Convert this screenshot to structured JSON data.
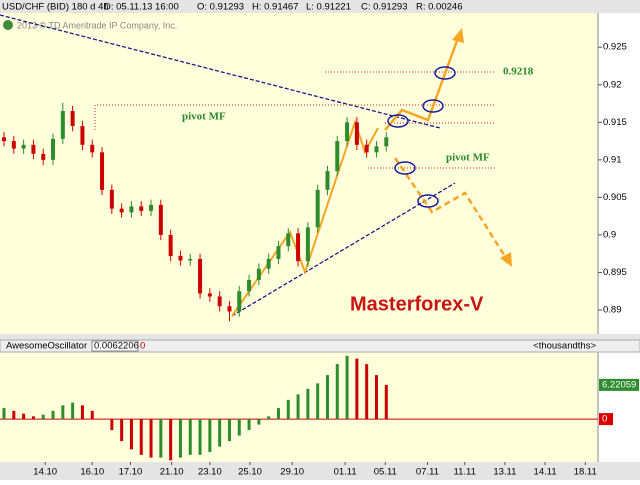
{
  "header": {
    "symbol": "USD/CHF (BID) 180 d 4h",
    "date": "D: 05.11.13 16:00",
    "open": "O: 0.91293",
    "high": "H: 0.91467",
    "low": "L: 0.91221",
    "close": "C: 0.91293",
    "range": "R: 0.00246"
  },
  "chart_data": [
    {
      "type": "candlestick",
      "copyright": "2013 © TD Ameritrade IP Company, Inc.",
      "level_label": "0.9218",
      "pivot_labels": [
        "pivot MF",
        "pivot MF"
      ],
      "watermark": "Masterforex-V",
      "open": [
        0.913,
        0.9125,
        0.9115,
        0.912,
        0.9108,
        0.91,
        0.9128,
        0.9165,
        0.9145,
        0.912,
        0.911,
        0.906,
        0.9035,
        0.903,
        0.9038,
        0.9032,
        0.904,
        0.9,
        0.8972,
        0.8966,
        0.8968,
        0.8922,
        0.8918,
        0.8905,
        0.8898,
        0.8925,
        0.894,
        0.8955,
        0.8968,
        0.8985,
        0.9002,
        0.8965,
        0.901,
        0.906,
        0.9085,
        0.9125,
        0.915,
        0.912,
        0.911,
        0.9118
      ],
      "high": [
        0.9137,
        0.9132,
        0.9127,
        0.9127,
        0.9115,
        0.9135,
        0.9176,
        0.9172,
        0.9152,
        0.9127,
        0.9117,
        0.9067,
        0.9042,
        0.9045,
        0.9045,
        0.9047,
        0.9047,
        0.9007,
        0.8979,
        0.8975,
        0.8975,
        0.8929,
        0.8925,
        0.8912,
        0.8932,
        0.8947,
        0.8962,
        0.8975,
        0.8992,
        0.9009,
        0.9009,
        0.9017,
        0.9067,
        0.9092,
        0.9132,
        0.9157,
        0.9157,
        0.9127,
        0.9125,
        0.9137
      ],
      "low": [
        0.9118,
        0.9108,
        0.9108,
        0.9101,
        0.9093,
        0.9093,
        0.9121,
        0.9138,
        0.9113,
        0.9103,
        0.9053,
        0.9028,
        0.9023,
        0.9023,
        0.9025,
        0.9025,
        0.8993,
        0.8965,
        0.8959,
        0.8959,
        0.8915,
        0.8911,
        0.8898,
        0.8885,
        0.8891,
        0.8918,
        0.8933,
        0.8948,
        0.8961,
        0.8978,
        0.8958,
        0.8958,
        0.9003,
        0.9053,
        0.9078,
        0.9118,
        0.9113,
        0.9103,
        0.9103,
        0.9111
      ],
      "close": [
        0.9125,
        0.9115,
        0.912,
        0.9108,
        0.91,
        0.9128,
        0.9165,
        0.9145,
        0.912,
        0.911,
        0.906,
        0.9035,
        0.903,
        0.9038,
        0.9032,
        0.904,
        0.9,
        0.8972,
        0.8966,
        0.8968,
        0.8922,
        0.8918,
        0.8905,
        0.8898,
        0.8925,
        0.894,
        0.8955,
        0.8968,
        0.8985,
        0.9002,
        0.8965,
        0.901,
        0.906,
        0.9085,
        0.9125,
        0.915,
        0.912,
        0.911,
        0.9118,
        0.913
      ],
      "up_color": "#2e8b2e",
      "down_color": "#cc0000",
      "xlim": [
        -0.41,
        60.6
      ],
      "xticks": [
        {
          "value": 4.2,
          "label": "14.10"
        },
        {
          "value": 9,
          "label": "16.10"
        },
        {
          "value": 12.9,
          "label": "17.10"
        },
        {
          "value": 17.1,
          "label": "21.10"
        },
        {
          "value": 21,
          "label": "23.10"
        },
        {
          "value": 25.1,
          "label": "25.10"
        },
        {
          "value": 29.4,
          "label": "29.10"
        },
        {
          "value": 34.8,
          "label": "01.11"
        },
        {
          "value": 38.9,
          "label": "05.11"
        },
        {
          "value": 43.2,
          "label": "07.11"
        },
        {
          "value": 47,
          "label": "11.11"
        },
        {
          "value": 51.1,
          "label": "13.11"
        },
        {
          "value": 55.2,
          "label": "14.11"
        },
        {
          "value": 59.3,
          "label": "18.11"
        }
      ],
      "ylim": [
        0.8868,
        0.92956
      ],
      "yticks": [
        0.925,
        0.92,
        0.915,
        0.91,
        0.905,
        0.9,
        0.895,
        0.89
      ]
    },
    {
      "type": "bar",
      "title": "AwesomeOscillator",
      "value_label": "0.0062206",
      "param": "0",
      "unit": "<thousandths>",
      "values": [
        2,
        1.5,
        1,
        0.5,
        0.8,
        1.5,
        2.5,
        3,
        2.5,
        1.5,
        0,
        -2,
        -4,
        -5.5,
        -6.5,
        -7,
        -7,
        -7.5,
        -7,
        -6.5,
        -6.5,
        -6,
        -5,
        -4,
        -3,
        -2,
        -1,
        0.5,
        2,
        3.5,
        4.5,
        5.5,
        6.5,
        8,
        10,
        11.5,
        11,
        10,
        8,
        6.22059
      ],
      "last_label": "6.22059",
      "up_color": "#2e8b2e",
      "down_color": "#cc0000",
      "xlim": [
        -0.41,
        60.6
      ],
      "ylim": [
        -7.8,
        12.2
      ],
      "yticks": [
        0
      ]
    }
  ]
}
